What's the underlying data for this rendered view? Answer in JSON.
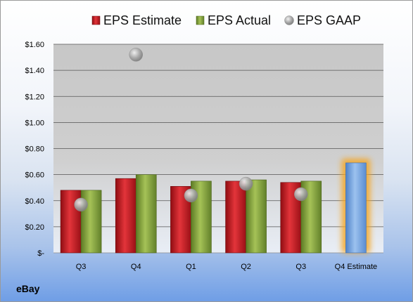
{
  "company": "eBay",
  "chart_data": {
    "type": "bar",
    "categories": [
      "Q3",
      "Q4",
      "Q1",
      "Q2",
      "Q3",
      "Q4 Estimate"
    ],
    "series": [
      {
        "name": "EPS Estimate",
        "type": "bar",
        "color": "#c0141c",
        "values": [
          0.48,
          0.57,
          0.51,
          0.55,
          0.54,
          0.69
        ]
      },
      {
        "name": "EPS Actual",
        "type": "bar",
        "color": "#7a9a3a",
        "values": [
          0.48,
          0.6,
          0.55,
          0.56,
          0.55,
          null
        ]
      },
      {
        "name": "EPS GAAP",
        "type": "scatter",
        "color": "#a8a8a8",
        "values": [
          0.37,
          1.52,
          0.44,
          0.53,
          0.45,
          null
        ]
      }
    ],
    "highlight": {
      "category": "Q4 Estimate",
      "color": "#6f9fd8",
      "glow": "#f5a623"
    },
    "yticks": [
      "$-",
      "$0.20",
      "$0.40",
      "$0.60",
      "$0.80",
      "$1.00",
      "$1.20",
      "$1.40",
      "$1.60"
    ],
    "ylim": [
      0,
      1.6
    ],
    "legend_position": "top",
    "grid": true
  }
}
